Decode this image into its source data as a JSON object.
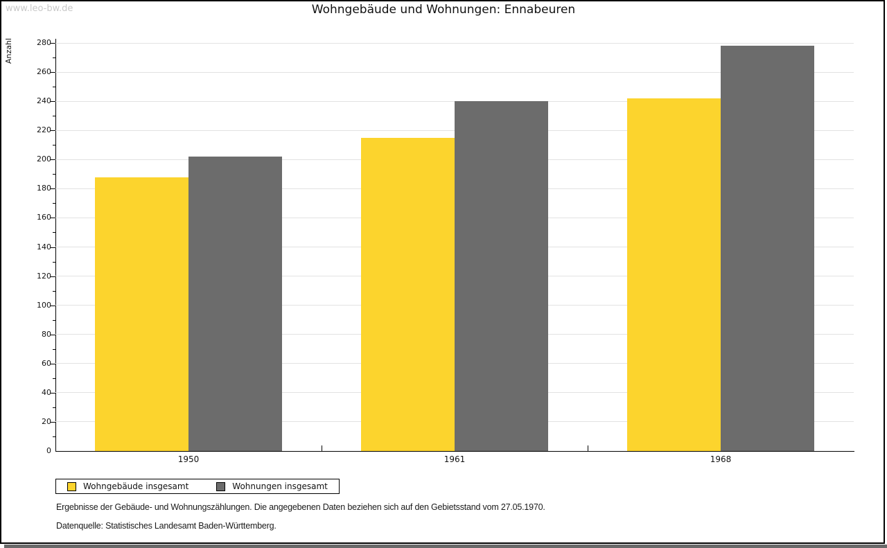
{
  "watermark": "www.leo-bw.de",
  "title": "Wohngebäude und Wohnungen: Ennabeuren",
  "chart_data": {
    "type": "bar",
    "categories": [
      "1950",
      "1961",
      "1968"
    ],
    "series": [
      {
        "name": "Wohngebäude insgesamt",
        "color": "#fcd42d",
        "values": [
          188,
          215,
          242
        ]
      },
      {
        "name": "Wohnungen insgesamt",
        "color": "#6c6c6c",
        "values": [
          202,
          240,
          278
        ]
      }
    ],
    "title": "Wohngebäude und Wohnungen: Ennabeuren",
    "xlabel": "",
    "ylabel": "Anzahl",
    "ylim": [
      0,
      280
    ],
    "ytick_major": 20,
    "ytick_minor": 10,
    "grid": true,
    "legend_position": "bottom-left"
  },
  "footnotes": [
    "Ergebnisse der Gebäude- und Wohnungszählungen. Die angegebenen Daten beziehen sich auf den Gebietsstand vom 27.05.1970.",
    "Datenquelle: Statistisches Landesamt Baden-Württemberg."
  ],
  "colors": {
    "bar_yellow": "#fcd42d",
    "bar_gray": "#6c6c6c",
    "gridline": "#e2e2e2",
    "watermark": "#c9c9c9",
    "frame": "#000000",
    "bottom_shadow": "#6a6a6a"
  }
}
